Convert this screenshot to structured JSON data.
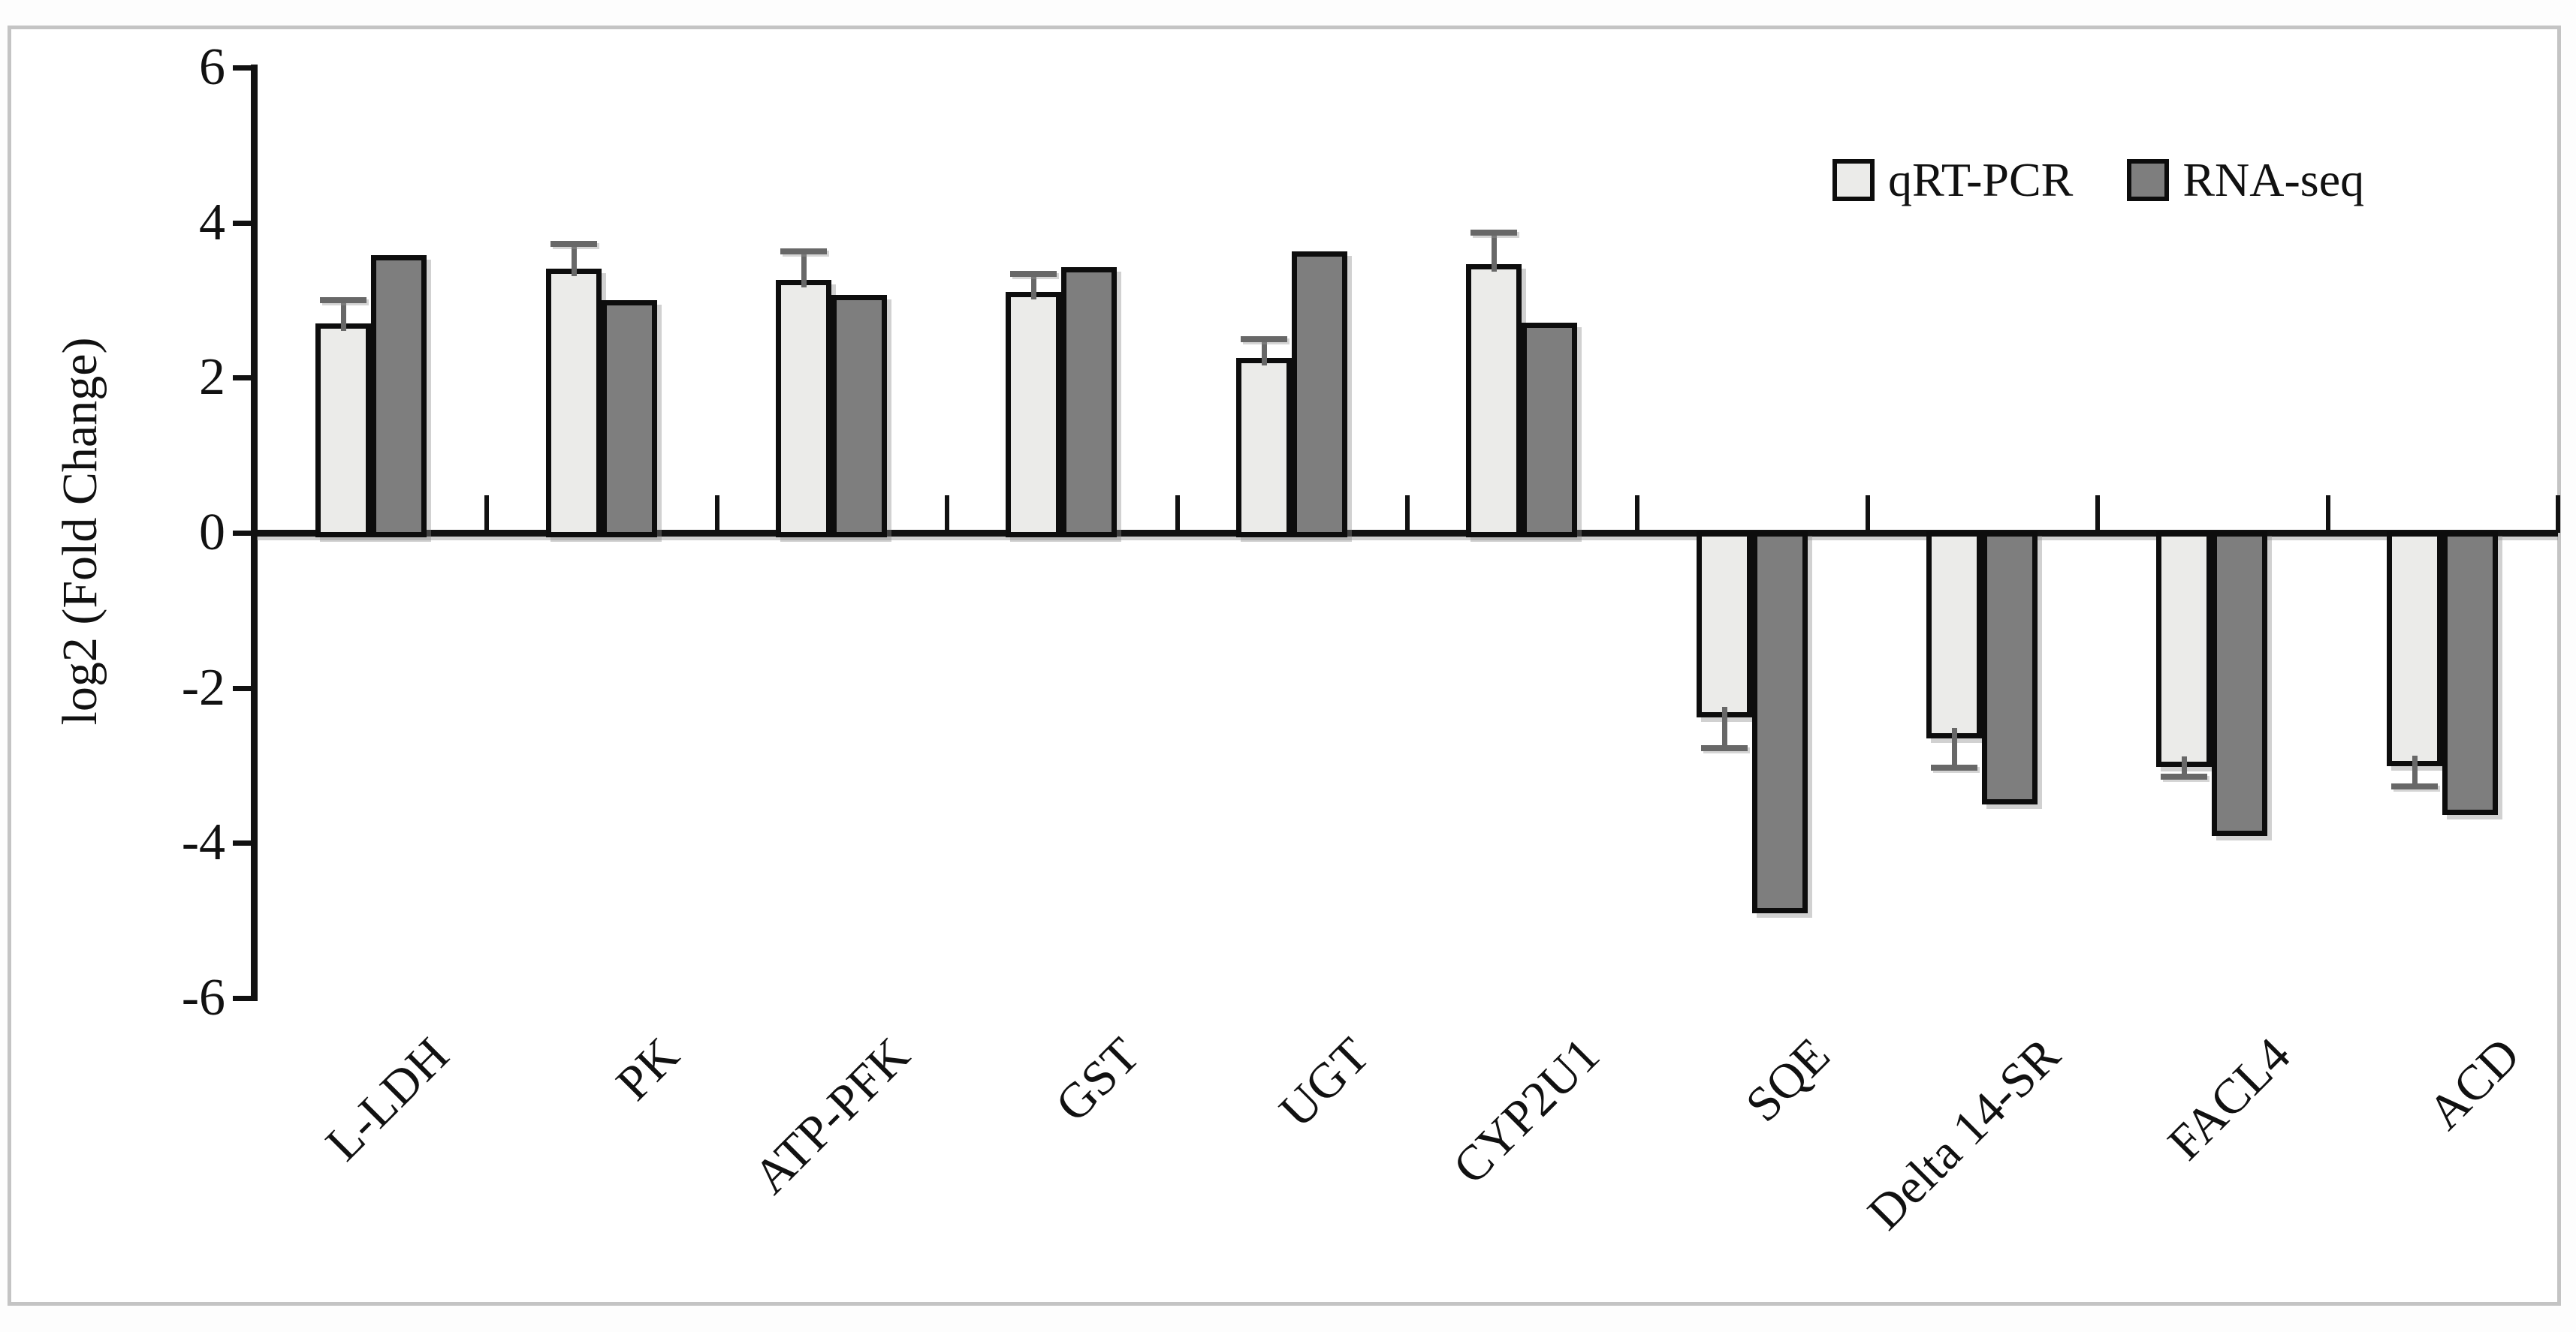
{
  "chart_data": {
    "type": "bar",
    "title": "",
    "ylabel": "log2 (Fold Change)",
    "xlabel": "",
    "ylim": [
      -6,
      6
    ],
    "yticks": [
      6,
      4,
      2,
      0,
      -2,
      -4,
      -6
    ],
    "grid": false,
    "legend_position": "top-right",
    "categories": [
      "L-LDH",
      "PK",
      "ATP-PFK",
      "GST",
      "UGT",
      "CYP2U1",
      "SQE",
      "Delta 14-SR",
      "FACL4",
      "ACD"
    ],
    "series": [
      {
        "name": "qRT-PCR",
        "color": "#ebebe9",
        "values": [
          2.7,
          3.41,
          3.26,
          3.11,
          2.26,
          3.47,
          -2.34,
          -2.61,
          -2.98,
          -2.97
        ],
        "errors": [
          0.3,
          0.32,
          0.37,
          0.23,
          0.24,
          0.4,
          0.44,
          0.42,
          0.17,
          0.3
        ]
      },
      {
        "name": "RNA-seq",
        "color": "#7e7e7e",
        "values": [
          3.58,
          3.0,
          3.07,
          3.43,
          3.63,
          2.71,
          -4.87,
          -3.47,
          -3.87,
          -3.6
        ]
      }
    ]
  }
}
